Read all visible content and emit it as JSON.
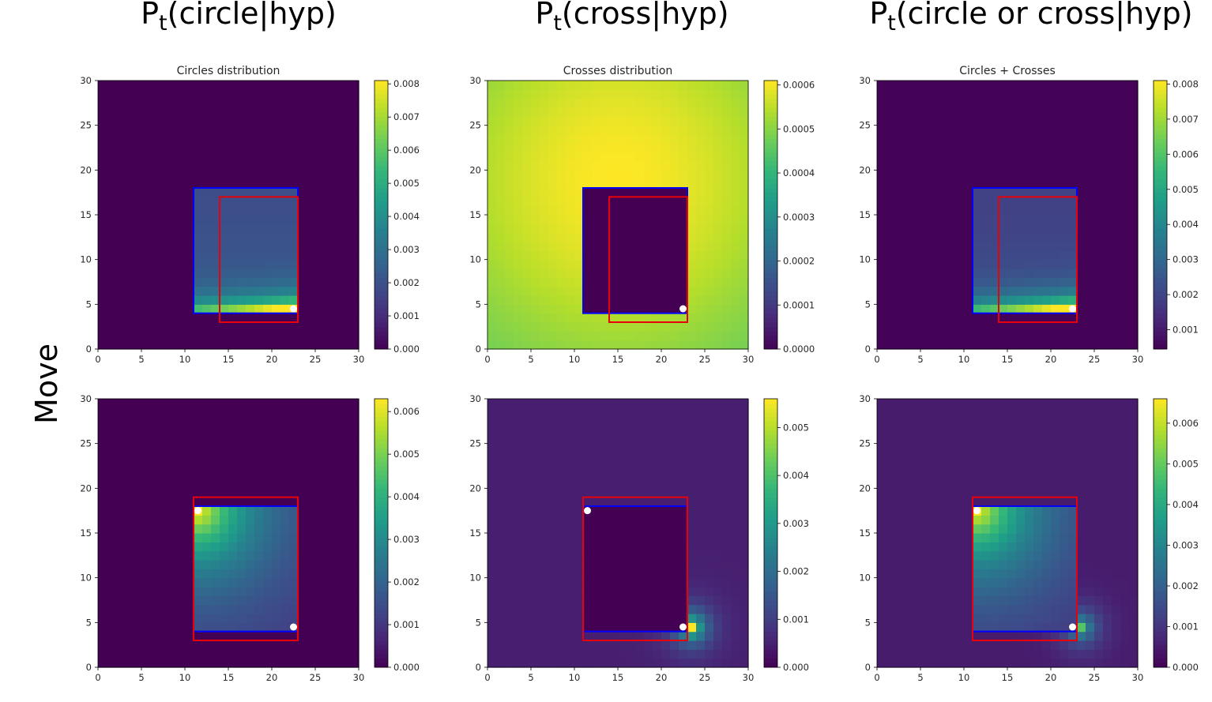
{
  "column_titles": [
    {
      "main": "P",
      "sub": "t",
      "rest": "(circle|hyp)"
    },
    {
      "main": "P",
      "sub": "t",
      "rest": "(cross|hyp)"
    },
    {
      "main": "P",
      "sub": "t",
      "rest": "(circle or cross|hyp)"
    }
  ],
  "row_label": "Move",
  "colormap": "viridis",
  "chart_data": [
    {
      "type": "heatmap",
      "id": "circles-top",
      "title": "Circles distribution",
      "xlim": [
        0,
        30
      ],
      "ylim": [
        0,
        30
      ],
      "xticks": [
        0,
        5,
        10,
        15,
        20,
        25,
        30
      ],
      "yticks": [
        0,
        5,
        10,
        15,
        20,
        25,
        30
      ],
      "colorbar": {
        "min": 0.0,
        "max": 0.0081,
        "ticks": [
          "0.000",
          "0.001",
          "0.002",
          "0.003",
          "0.004",
          "0.005",
          "0.006",
          "0.007",
          "0.008"
        ]
      },
      "field": {
        "kind": "circles_bottom_right",
        "x0": 11,
        "x1": 23,
        "y0": 4,
        "y1": 18,
        "background": 0.0,
        "peak": 0.0081
      },
      "blue_box": {
        "x0": 11,
        "y0": 4,
        "x1": 23,
        "y1": 18
      },
      "red_box": {
        "x0": 14,
        "y0": 3,
        "x1": 23,
        "y1": 17
      },
      "points": [
        {
          "x": 22.5,
          "y": 4.5
        }
      ]
    },
    {
      "type": "heatmap",
      "id": "crosses-top",
      "title": "Crosses distribution",
      "xlim": [
        0,
        30
      ],
      "ylim": [
        0,
        30
      ],
      "xticks": [
        0,
        5,
        10,
        15,
        20,
        25,
        30
      ],
      "yticks": [
        0,
        5,
        10,
        15,
        20,
        25,
        30
      ],
      "colorbar": {
        "min": 0.0,
        "max": 0.00061,
        "ticks": [
          "0.0000",
          "0.0001",
          "0.0002",
          "0.0003",
          "0.0004",
          "0.0005",
          "0.0006"
        ]
      },
      "field": {
        "kind": "crosses_gaussian",
        "cx": 15,
        "cy": 19,
        "sigma": 16,
        "base": 0.00042,
        "peak": 0.00061,
        "x0": 11,
        "x1": 23,
        "y0": 4,
        "y1": 18,
        "inside": 0.0
      },
      "blue_box": {
        "x0": 11,
        "y0": 4,
        "x1": 23,
        "y1": 18
      },
      "red_box": {
        "x0": 14,
        "y0": 3,
        "x1": 23,
        "y1": 17
      },
      "points": [
        {
          "x": 22.5,
          "y": 4.5
        }
      ]
    },
    {
      "type": "heatmap",
      "id": "combined-top",
      "title": "Circles + Crosses",
      "xlim": [
        0,
        30
      ],
      "ylim": [
        0,
        30
      ],
      "xticks": [
        0,
        5,
        10,
        15,
        20,
        25,
        30
      ],
      "yticks": [
        0,
        5,
        10,
        15,
        20,
        25,
        30
      ],
      "colorbar": {
        "min": 0.00045,
        "max": 0.0081,
        "ticks": [
          "0.001",
          "0.002",
          "0.003",
          "0.004",
          "0.005",
          "0.006",
          "0.007",
          "0.008"
        ]
      },
      "field": {
        "kind": "circles_bottom_right",
        "x0": 11,
        "x1": 23,
        "y0": 4,
        "y1": 18,
        "background": 0.0005,
        "peak": 0.0081
      },
      "blue_box": {
        "x0": 11,
        "y0": 4,
        "x1": 23,
        "y1": 18
      },
      "red_box": {
        "x0": 14,
        "y0": 3,
        "x1": 23,
        "y1": 17
      },
      "points": [
        {
          "x": 22.5,
          "y": 4.5
        }
      ]
    },
    {
      "type": "heatmap",
      "id": "circles-bottom",
      "title": "",
      "xlim": [
        0,
        30
      ],
      "ylim": [
        0,
        30
      ],
      "xticks": [
        0,
        5,
        10,
        15,
        20,
        25,
        30
      ],
      "yticks": [
        0,
        5,
        10,
        15,
        20,
        25,
        30
      ],
      "colorbar": {
        "min": 0.0,
        "max": 0.0063,
        "ticks": [
          "0.000",
          "0.001",
          "0.002",
          "0.003",
          "0.004",
          "0.005",
          "0.006"
        ]
      },
      "field": {
        "kind": "circles_top_left",
        "x0": 11,
        "x1": 23,
        "y0": 4,
        "y1": 18,
        "background": 0.0,
        "peak": 0.0063
      },
      "blue_box": {
        "x0": 11,
        "y0": 4,
        "x1": 23,
        "y1": 18
      },
      "red_box": {
        "x0": 11,
        "y0": 3,
        "x1": 23,
        "y1": 19
      },
      "points": [
        {
          "x": 11.5,
          "y": 17.5
        },
        {
          "x": 22.5,
          "y": 4.5
        }
      ]
    },
    {
      "type": "heatmap",
      "id": "crosses-bottom",
      "title": "",
      "xlim": [
        0,
        30
      ],
      "ylim": [
        0,
        30
      ],
      "xticks": [
        0,
        5,
        10,
        15,
        20,
        25,
        30
      ],
      "yticks": [
        0,
        5,
        10,
        15,
        20,
        25,
        30
      ],
      "colorbar": {
        "min": 0.0,
        "max": 0.0056,
        "ticks": [
          "0.000",
          "0.001",
          "0.002",
          "0.003",
          "0.004",
          "0.005"
        ]
      },
      "field": {
        "kind": "crosses_corner",
        "cx": 23.5,
        "cy": 4.5,
        "base": 0.00048,
        "peak": 0.0056,
        "x0": 11,
        "x1": 23,
        "y0": 4,
        "y1": 18,
        "inside": 0.0
      },
      "blue_box": {
        "x0": 11,
        "y0": 4,
        "x1": 23,
        "y1": 18
      },
      "red_box": {
        "x0": 11,
        "y0": 3,
        "x1": 23,
        "y1": 19
      },
      "points": [
        {
          "x": 11.5,
          "y": 17.5
        },
        {
          "x": 22.5,
          "y": 4.5
        }
      ]
    },
    {
      "type": "heatmap",
      "id": "combined-bottom",
      "title": "",
      "xlim": [
        0,
        30
      ],
      "ylim": [
        0,
        30
      ],
      "xticks": [
        0,
        5,
        10,
        15,
        20,
        25,
        30
      ],
      "yticks": [
        0,
        5,
        10,
        15,
        20,
        25,
        30
      ],
      "colorbar": {
        "min": 0.0,
        "max": 0.0066,
        "ticks": [
          "0.000",
          "0.001",
          "0.002",
          "0.003",
          "0.004",
          "0.005",
          "0.006"
        ]
      },
      "field": {
        "kind": "combined_bottom",
        "x0": 11,
        "x1": 23,
        "y0": 4,
        "y1": 18,
        "cx": 23.5,
        "cy": 4.5,
        "base": 0.0005,
        "peak": 0.0066,
        "cross_peak": 0.0048
      },
      "blue_box": {
        "x0": 11,
        "y0": 4,
        "x1": 23,
        "y1": 18
      },
      "red_box": {
        "x0": 11,
        "y0": 3,
        "x1": 23,
        "y1": 19
      },
      "points": [
        {
          "x": 11.5,
          "y": 17.5
        },
        {
          "x": 22.5,
          "y": 4.5
        }
      ]
    }
  ]
}
